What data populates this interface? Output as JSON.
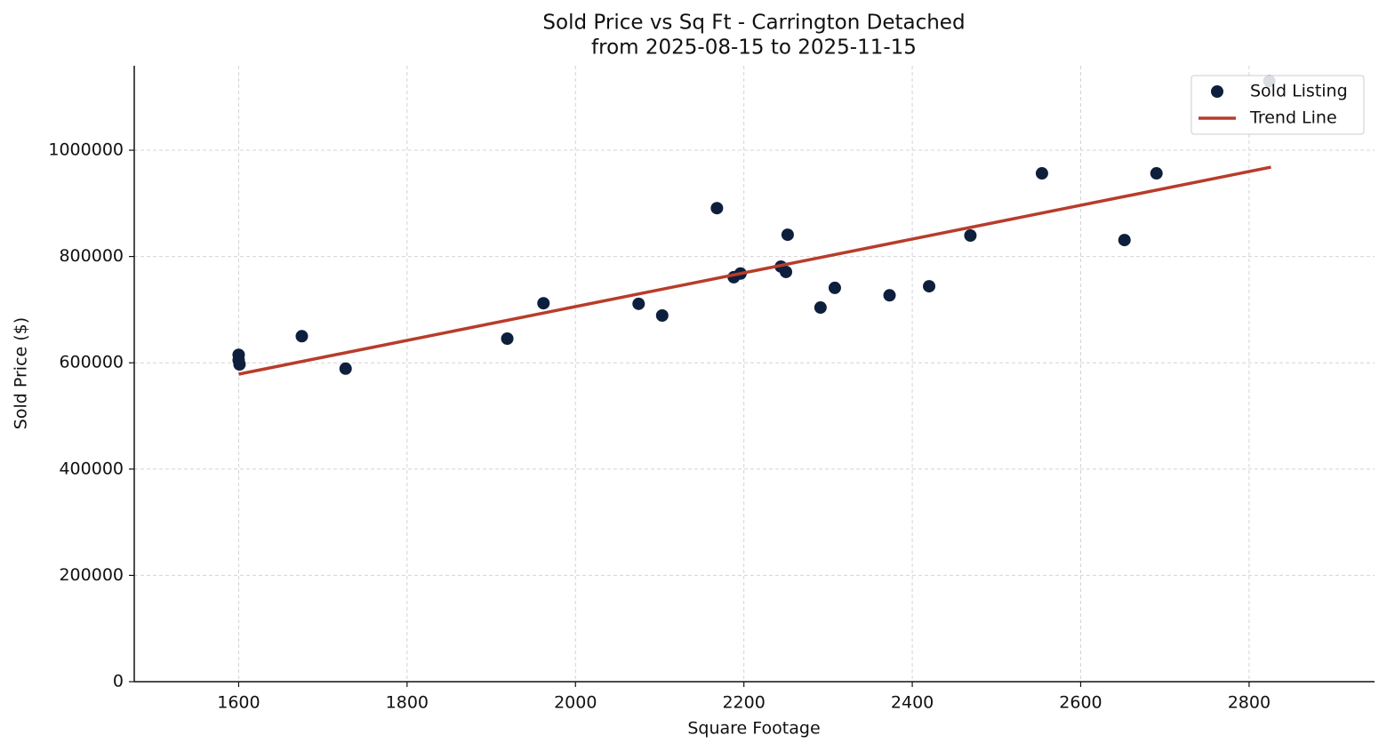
{
  "chart_data": {
    "type": "scatter",
    "title": "Sold Price vs Sq Ft - Carrington Detached",
    "subtitle": "from 2025-08-15 to 2025-11-15",
    "x_label": "Square Footage",
    "y_label": "Sold Price ($)",
    "xlim": [
      1476,
      2949
    ],
    "ylim": [
      0,
      1158900
    ],
    "xticks": [
      1600,
      1800,
      2000,
      2200,
      2400,
      2600,
      2800
    ],
    "yticks": [
      0,
      200000,
      400000,
      600000,
      800000,
      1000000
    ],
    "grid": true,
    "legend": "upper right",
    "series": [
      {
        "name": "Sold Listing",
        "type": "scatter",
        "color": "#0d1f3c",
        "x": [
          1600,
          1600,
          1601,
          1675,
          1727,
          1919,
          1962,
          2075,
          2103,
          2168,
          2188,
          2196,
          2244,
          2250,
          2252,
          2291,
          2308,
          2373,
          2420,
          2469,
          2554,
          2652,
          2690,
          2824
        ],
        "values": [
          615000,
          605000,
          597000,
          650000,
          589000,
          645500,
          712000,
          711000,
          689000,
          891000,
          761000,
          768000,
          781000,
          771000,
          841000,
          704000,
          741000,
          727000,
          744000,
          839500,
          956500,
          831000,
          956500,
          1130000
        ]
      },
      {
        "name": "Trend Line",
        "type": "line",
        "color": "#b83c2b",
        "x": [
          1600,
          2826
        ],
        "values": [
          578600,
          968200
        ]
      }
    ]
  }
}
